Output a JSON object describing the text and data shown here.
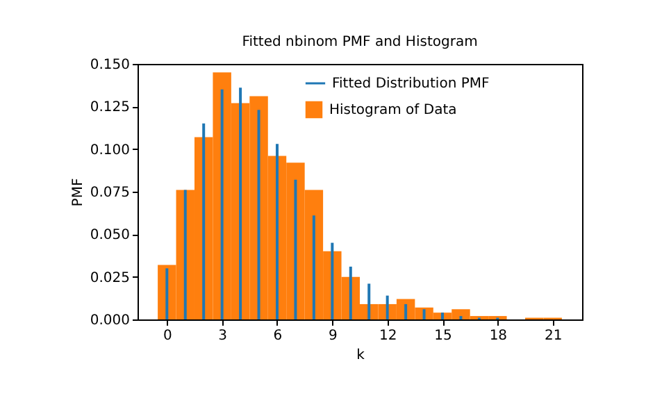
{
  "chart_data": {
    "type": "histogram",
    "title": "Fitted nbinom PMF and Histogram",
    "xlabel": "k",
    "ylabel": "PMF",
    "xlim": [
      -1.6,
      22.6
    ],
    "xticks": [
      0,
      3,
      6,
      9,
      12,
      15,
      18,
      21
    ],
    "ylim": [
      0,
      0.15
    ],
    "yticks": [
      {
        "value": 0,
        "label": "0.000"
      },
      {
        "value": 0.025,
        "label": "0.025"
      },
      {
        "value": 0.05,
        "label": "0.050"
      },
      {
        "value": 0.075,
        "label": "0.075"
      },
      {
        "value": 0.1,
        "label": "0.100"
      },
      {
        "value": 0.125,
        "label": "0.125"
      },
      {
        "value": 0.15,
        "label": "0.150"
      }
    ],
    "grid": false,
    "legend": "top right",
    "series": [
      {
        "name": "Fitted Distribution PMF",
        "type": "bar",
        "color": "#1f77b4",
        "x": [
          0,
          1,
          2,
          3,
          4,
          5,
          6,
          7,
          8,
          9,
          10,
          11,
          12,
          13,
          14,
          15,
          16,
          17,
          18
        ],
        "values": [
          0.03,
          0.076,
          0.115,
          0.135,
          0.136,
          0.123,
          0.103,
          0.082,
          0.061,
          0.045,
          0.031,
          0.021,
          0.014,
          0.009,
          0.006,
          0.004,
          0.002,
          0.001,
          0.001
        ]
      },
      {
        "name": "Histogram of Data",
        "color": "#ff7f0e",
        "bins": [
          -0.5,
          0.5,
          1.5,
          2.5,
          3.5,
          4.5,
          5.5,
          6.5,
          7.5,
          8.5,
          9.5,
          10.5,
          11.5,
          12.5,
          13.5,
          14.5,
          15.5,
          16.5,
          17.5,
          18.5,
          19.5,
          20.5,
          21.5
        ],
        "values": [
          0.032,
          0.076,
          0.107,
          0.145,
          0.127,
          0.131,
          0.096,
          0.092,
          0.076,
          0.04,
          0.025,
          0.009,
          0.009,
          0.012,
          0.007,
          0.004,
          0.006,
          0.002,
          0.002,
          0,
          0.001,
          0.001
        ]
      }
    ]
  }
}
